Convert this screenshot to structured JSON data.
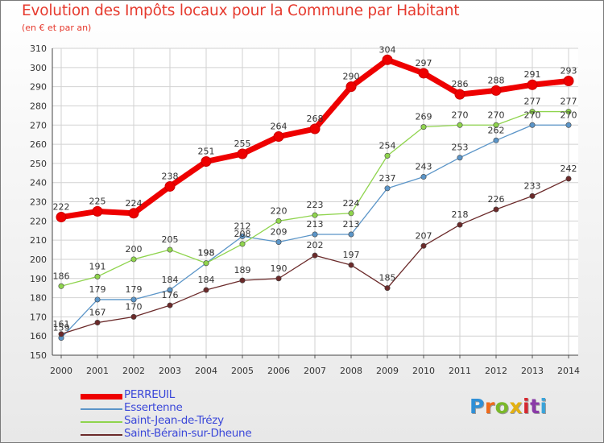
{
  "title": "Evolution des Impôts locaux pour la Commune par Habitant",
  "subtitle": "(en € et par an)",
  "logo": {
    "text": "Proxiti",
    "colors": [
      "#2f8fd6",
      "#ef6a1a",
      "#7ab829",
      "#e3b010",
      "#d6272f",
      "#8a3aa8",
      "#39a3d9"
    ]
  },
  "chart_data": {
    "type": "line",
    "title": "Evolution des Impôts locaux pour la Commune par Habitant",
    "subtitle": "(en € et par an)",
    "xlabel": "",
    "ylabel": "",
    "x": [
      2000,
      2001,
      2002,
      2003,
      2004,
      2005,
      2006,
      2007,
      2008,
      2009,
      2010,
      2011,
      2012,
      2013,
      2014
    ],
    "ylim": [
      150,
      310
    ],
    "yticks": [
      150,
      160,
      170,
      180,
      190,
      200,
      210,
      220,
      230,
      240,
      250,
      260,
      270,
      280,
      290,
      300,
      310
    ],
    "grid": true,
    "legend_position": "bottom-left",
    "series": [
      {
        "name": "PERREUIL",
        "color": "#ee0000",
        "values": [
          222,
          225,
          224,
          238,
          251,
          255,
          264,
          268,
          290,
          304,
          297,
          286,
          288,
          291,
          293
        ]
      },
      {
        "name": "Essertenne",
        "color": "#5b95c8",
        "values": [
          159,
          179,
          179,
          184,
          198,
          212,
          209,
          213,
          213,
          237,
          243,
          253,
          262,
          270,
          270
        ]
      },
      {
        "name": "Saint-Jean-de-Trézy",
        "color": "#8fd44d",
        "values": [
          186,
          191,
          200,
          205,
          198,
          208,
          220,
          223,
          224,
          254,
          269,
          270,
          270,
          277,
          277
        ]
      },
      {
        "name": "Saint-Bérain-sur-Dheune",
        "color": "#6b2a2a",
        "values": [
          161,
          167,
          170,
          176,
          184,
          189,
          190,
          202,
          197,
          185,
          207,
          218,
          226,
          233,
          242
        ]
      }
    ]
  }
}
